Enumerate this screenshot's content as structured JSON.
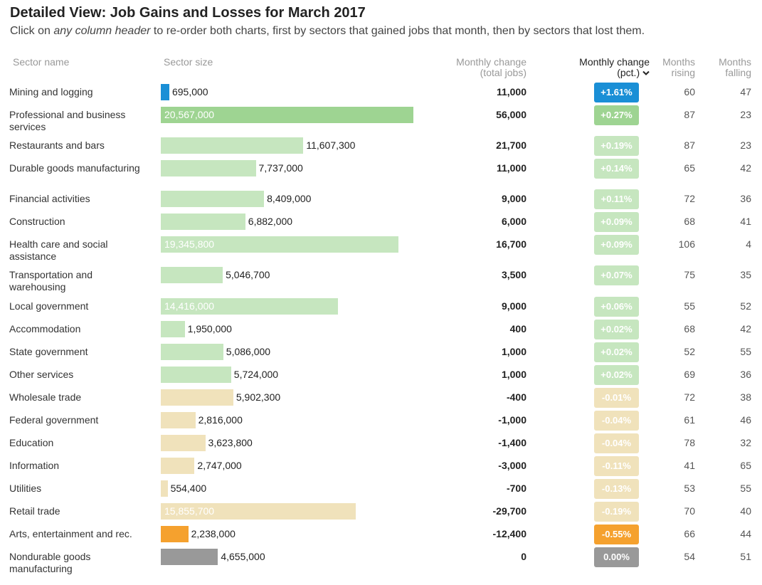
{
  "title": "Detailed View: Job Gains and Losses for March 2017",
  "subtitle": {
    "before": "Click on ",
    "emphasis": "any column header",
    "after": " to re-order both charts, first by sectors that gained jobs that month, then by sectors that lost them."
  },
  "headers": {
    "sector_name": "Sector name",
    "sector_size": "Sector size",
    "monthly_change_total_1": "Monthly change",
    "monthly_change_total_2": "(total jobs)",
    "monthly_change_pct_1": "Monthly change",
    "monthly_change_pct_2": "(pct.)",
    "sort_icon": "chevron-down-icon",
    "months_rising_1": "Months",
    "months_rising_2": "rising",
    "months_falling_1": "Months",
    "months_falling_2": "falling"
  },
  "colors": {
    "top_gain": "#1a8fd6",
    "strong_gain": "#9ed492",
    "gain": "#c6e6bf",
    "loss": "#f0e2bb",
    "top_loss": "#f5a12e",
    "zero": "#999999"
  },
  "chart_data": {
    "type": "table",
    "title": "Detailed View: Job Gains and Losses for March 2017",
    "columns": [
      "Sector name",
      "Sector size",
      "Monthly change (total jobs)",
      "Monthly change (pct.)",
      "Months rising",
      "Months falling"
    ],
    "sort": "Monthly change (pct.), descending",
    "rows": [
      {
        "sector": "Mining and logging",
        "size": 695000,
        "size_label": "695,000",
        "change": "11,000",
        "pct": "+1.61%",
        "rising": "60",
        "falling": "47",
        "cat": "top_gain"
      },
      {
        "sector": "Professional and business services",
        "size": 20567000,
        "size_label": "20,567,000",
        "change": "56,000",
        "pct": "+0.27%",
        "rising": "87",
        "falling": "23",
        "cat": "strong_gain"
      },
      {
        "sector": "Restaurants and bars",
        "size": 11607300,
        "size_label": "11,607,300",
        "change": "21,700",
        "pct": "+0.19%",
        "rising": "87",
        "falling": "23",
        "cat": "gain"
      },
      {
        "sector": "Durable goods manufacturing",
        "size": 7737000,
        "size_label": "7,737,000",
        "change": "11,000",
        "pct": "+0.14%",
        "rising": "65",
        "falling": "42",
        "cat": "gain"
      },
      {
        "sector": "Financial activities",
        "size": 8409000,
        "size_label": "8,409,000",
        "change": "9,000",
        "pct": "+0.11%",
        "rising": "72",
        "falling": "36",
        "cat": "gain"
      },
      {
        "sector": "Construction",
        "size": 6882000,
        "size_label": "6,882,000",
        "change": "6,000",
        "pct": "+0.09%",
        "rising": "68",
        "falling": "41",
        "cat": "gain"
      },
      {
        "sector": "Health care and social assistance",
        "size": 19345800,
        "size_label": "19,345,800",
        "change": "16,700",
        "pct": "+0.09%",
        "rising": "106",
        "falling": "4",
        "cat": "gain"
      },
      {
        "sector": "Transportation and warehousing",
        "size": 5046700,
        "size_label": "5,046,700",
        "change": "3,500",
        "pct": "+0.07%",
        "rising": "75",
        "falling": "35",
        "cat": "gain"
      },
      {
        "sector": "Local government",
        "size": 14416000,
        "size_label": "14,416,000",
        "change": "9,000",
        "pct": "+0.06%",
        "rising": "55",
        "falling": "52",
        "cat": "gain"
      },
      {
        "sector": "Accommodation",
        "size": 1950000,
        "size_label": "1,950,000",
        "change": "400",
        "pct": "+0.02%",
        "rising": "68",
        "falling": "42",
        "cat": "gain"
      },
      {
        "sector": "State government",
        "size": 5086000,
        "size_label": "5,086,000",
        "change": "1,000",
        "pct": "+0.02%",
        "rising": "52",
        "falling": "55",
        "cat": "gain"
      },
      {
        "sector": "Other services",
        "size": 5724000,
        "size_label": "5,724,000",
        "change": "1,000",
        "pct": "+0.02%",
        "rising": "69",
        "falling": "36",
        "cat": "gain"
      },
      {
        "sector": "Wholesale trade",
        "size": 5902300,
        "size_label": "5,902,300",
        "change": "-400",
        "pct": "-0.01%",
        "rising": "72",
        "falling": "38",
        "cat": "loss"
      },
      {
        "sector": "Federal government",
        "size": 2816000,
        "size_label": "2,816,000",
        "change": "-1,000",
        "pct": "-0.04%",
        "rising": "61",
        "falling": "46",
        "cat": "loss"
      },
      {
        "sector": "Education",
        "size": 3623800,
        "size_label": "3,623,800",
        "change": "-1,400",
        "pct": "-0.04%",
        "rising": "78",
        "falling": "32",
        "cat": "loss"
      },
      {
        "sector": "Information",
        "size": 2747000,
        "size_label": "2,747,000",
        "change": "-3,000",
        "pct": "-0.11%",
        "rising": "41",
        "falling": "65",
        "cat": "loss"
      },
      {
        "sector": "Utilities",
        "size": 554400,
        "size_label": "554,400",
        "change": "-700",
        "pct": "-0.13%",
        "rising": "53",
        "falling": "55",
        "cat": "loss"
      },
      {
        "sector": "Retail trade",
        "size": 15855700,
        "size_label": "15,855,700",
        "change": "-29,700",
        "pct": "-0.19%",
        "rising": "70",
        "falling": "40",
        "cat": "loss"
      },
      {
        "sector": "Arts, entertainment and rec.",
        "size": 2238000,
        "size_label": "2,238,000",
        "change": "-12,400",
        "pct": "-0.55%",
        "rising": "66",
        "falling": "44",
        "cat": "top_loss"
      },
      {
        "sector": "Nondurable goods manufacturing",
        "size": 4655000,
        "size_label": "4,655,000",
        "change": "0",
        "pct": "0.00%",
        "rising": "54",
        "falling": "51",
        "cat": "zero"
      }
    ]
  }
}
